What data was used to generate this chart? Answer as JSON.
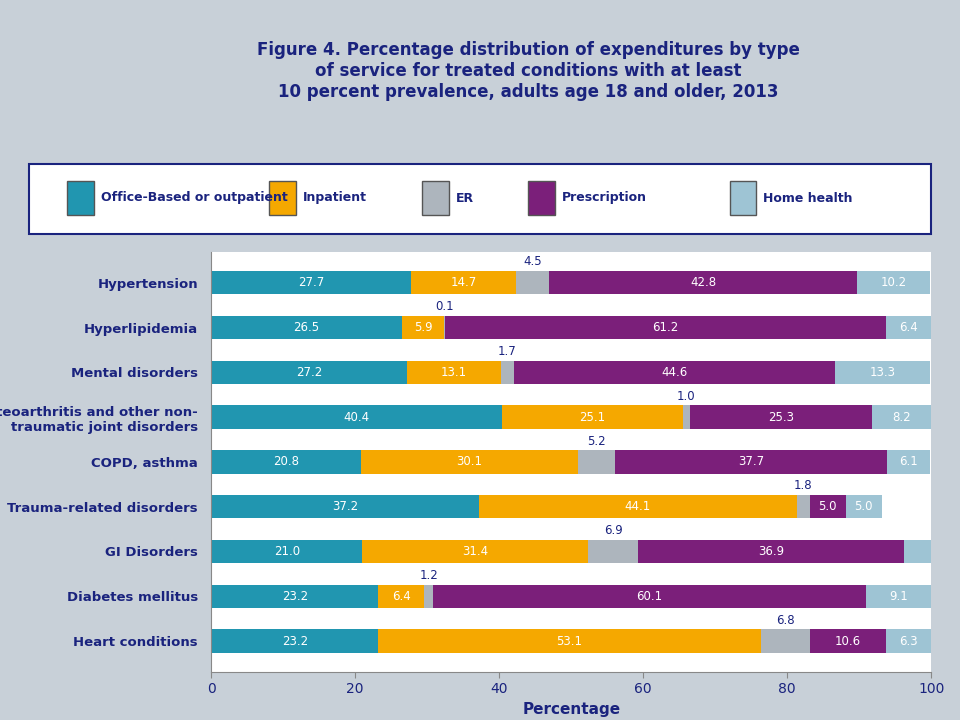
{
  "title_line1": "Figure 4. Percentage distribution of expenditures by type",
  "title_line2": "of service for treated conditions with at least",
  "title_line3": "10 percent prevalence, adults age 18 and older, 2013",
  "title_color": "#1a237e",
  "xlabel": "Percentage",
  "categories": [
    "Hypertension",
    "Hyperlipidemia",
    "Mental disorders",
    "Osteoarthritis and other non-\ntraumatic joint disorders",
    "COPD, asthma",
    "Trauma-related disorders",
    "GI Disorders",
    "Diabetes mellitus",
    "Heart conditions"
  ],
  "series_names": [
    "Office-Based or outpatient",
    "Inpatient",
    "ER",
    "Prescription",
    "Home health"
  ],
  "series": {
    "Office-Based or outpatient": [
      27.7,
      26.5,
      27.2,
      40.4,
      20.8,
      37.2,
      21.0,
      23.2,
      23.2
    ],
    "Inpatient": [
      14.7,
      5.9,
      13.1,
      25.1,
      30.1,
      44.1,
      31.4,
      6.4,
      53.1
    ],
    "ER": [
      4.5,
      0.1,
      1.7,
      1.0,
      5.2,
      1.8,
      6.9,
      1.2,
      6.8
    ],
    "Prescription": [
      42.8,
      61.2,
      44.6,
      25.3,
      37.7,
      5.0,
      36.9,
      60.1,
      10.6
    ],
    "Home health": [
      10.2,
      6.4,
      13.3,
      8.2,
      6.1,
      5.0,
      3.9,
      9.1,
      6.3
    ]
  },
  "colors": {
    "Office-Based or outpatient": "#2196b0",
    "Inpatient": "#f5a800",
    "ER": "#adb5bd",
    "Prescription": "#7b1f7a",
    "Home health": "#9ec4d4"
  },
  "header_bg": "#c8d0d8",
  "chart_panel_bg": "#ffffff",
  "fig_bg": "#c8d0d8",
  "legend_border": "#1a237e",
  "bar_height": 0.52,
  "xlim": [
    0,
    100
  ],
  "xticks": [
    0,
    20,
    40,
    60,
    80,
    100
  ],
  "label_fontsize": 8.5,
  "ylabel_fontsize": 9.5,
  "xlabel_fontsize": 11
}
